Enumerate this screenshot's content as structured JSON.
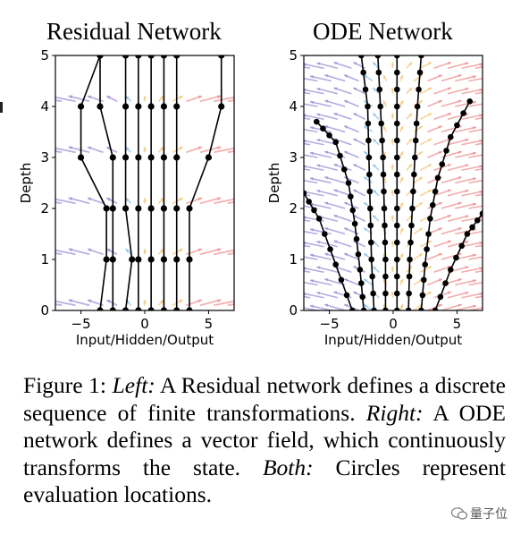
{
  "panels": [
    {
      "title": "Residual Network",
      "xlabel": "Input/Hidden/Output",
      "ylabel": "Depth",
      "xticks": [
        "−5",
        "0",
        "5"
      ],
      "yticks": [
        "0",
        "1",
        "2",
        "3",
        "4",
        "5"
      ]
    },
    {
      "title": "ODE Network",
      "xlabel": "Input/Hidden/Output",
      "ylabel": "Depth",
      "xticks": [
        "−5",
        "0",
        "5"
      ],
      "yticks": [
        "0",
        "1",
        "2",
        "3",
        "4",
        "5"
      ]
    }
  ],
  "caption": {
    "label": "Figure 1:",
    "left_word": "Left:",
    "left_text": "A Residual network defines a discrete sequence of finite transformations.",
    "right_word": "Right:",
    "right_text": "A ODE network defines a vector field, which continuously transforms the state.",
    "both_word": "Both:",
    "both_text": "Circles represent evaluation locations."
  },
  "watermark": "量子位",
  "colors": {
    "purple": "#9b8fd6",
    "red": "#ef8f8f",
    "orange": "#f3c77a",
    "blue": "#8ec3ea"
  },
  "chart_data": [
    {
      "type": "line",
      "title": "Residual Network",
      "xlabel": "Input/Hidden/Output",
      "ylabel": "Depth",
      "xlim": [
        -7,
        7
      ],
      "ylim": [
        0,
        5
      ],
      "depths": [
        0,
        1,
        2,
        3,
        4,
        5
      ],
      "trajectories": [
        [
          -3.5,
          -3.0,
          -3.0,
          -5.0,
          -5.0,
          -3.5
        ],
        [
          -2.5,
          -2.5,
          -2.5,
          -2.5,
          -3.5,
          -3.5
        ],
        [
          -1.5,
          -1.0,
          -1.5,
          -1.5,
          -1.5,
          -1.5
        ],
        [
          -0.5,
          -0.5,
          -0.5,
          -0.5,
          -0.5,
          -0.5
        ],
        [
          0.5,
          0.5,
          0.5,
          0.5,
          0.5,
          0.5
        ],
        [
          1.5,
          1.5,
          1.5,
          1.5,
          1.5,
          1.5
        ],
        [
          2.5,
          2.5,
          2.5,
          2.5,
          2.5,
          2.5
        ],
        [
          3.5,
          3.5,
          3.5,
          5.0,
          6.0,
          6.0
        ]
      ],
      "vector_field": "discrete"
    },
    {
      "type": "line",
      "title": "ODE Network",
      "xlabel": "Input/Hidden/Output",
      "ylabel": "Depth",
      "xlim": [
        -7,
        7
      ],
      "ylim": [
        0,
        5
      ],
      "trajectories": [
        {
          "x": [
            -3.2,
            -4.5,
            -5.8,
            -7.0
          ],
          "y": [
            0,
            0.9,
            1.8,
            2.3
          ]
        },
        {
          "x": [
            -2.3,
            -2.6,
            -3.0,
            -3.5,
            -4.5,
            -6.0
          ],
          "y": [
            0,
            0.8,
            1.7,
            2.5,
            3.3,
            3.7
          ]
        },
        {
          "x": [
            -1.5,
            -1.7,
            -1.8,
            -1.9,
            -2.0,
            -2.5
          ],
          "y": [
            0,
            1,
            2,
            3,
            4,
            5
          ]
        },
        {
          "x": [
            -0.6,
            -0.6,
            -0.7,
            -0.8,
            -1.0,
            -1.2
          ],
          "y": [
            0,
            1,
            2,
            3,
            4,
            5
          ]
        },
        {
          "x": [
            0.3,
            0.3,
            0.3,
            0.3,
            0.3,
            0.3
          ],
          "y": [
            0,
            1,
            2,
            3,
            4,
            5
          ]
        },
        {
          "x": [
            1.2,
            1.3,
            1.5,
            1.7,
            1.9,
            2.2
          ],
          "y": [
            0,
            1,
            2,
            3,
            4,
            5
          ]
        },
        {
          "x": [
            2.2,
            2.5,
            2.9,
            3.5,
            4.5,
            6.0
          ],
          "y": [
            0,
            0.9,
            1.8,
            2.6,
            3.4,
            4.1
          ]
        },
        {
          "x": [
            3.3,
            4.5,
            5.8,
            7.0
          ],
          "y": [
            0,
            0.8,
            1.5,
            1.9
          ]
        }
      ],
      "vector_field": "continuous"
    }
  ]
}
